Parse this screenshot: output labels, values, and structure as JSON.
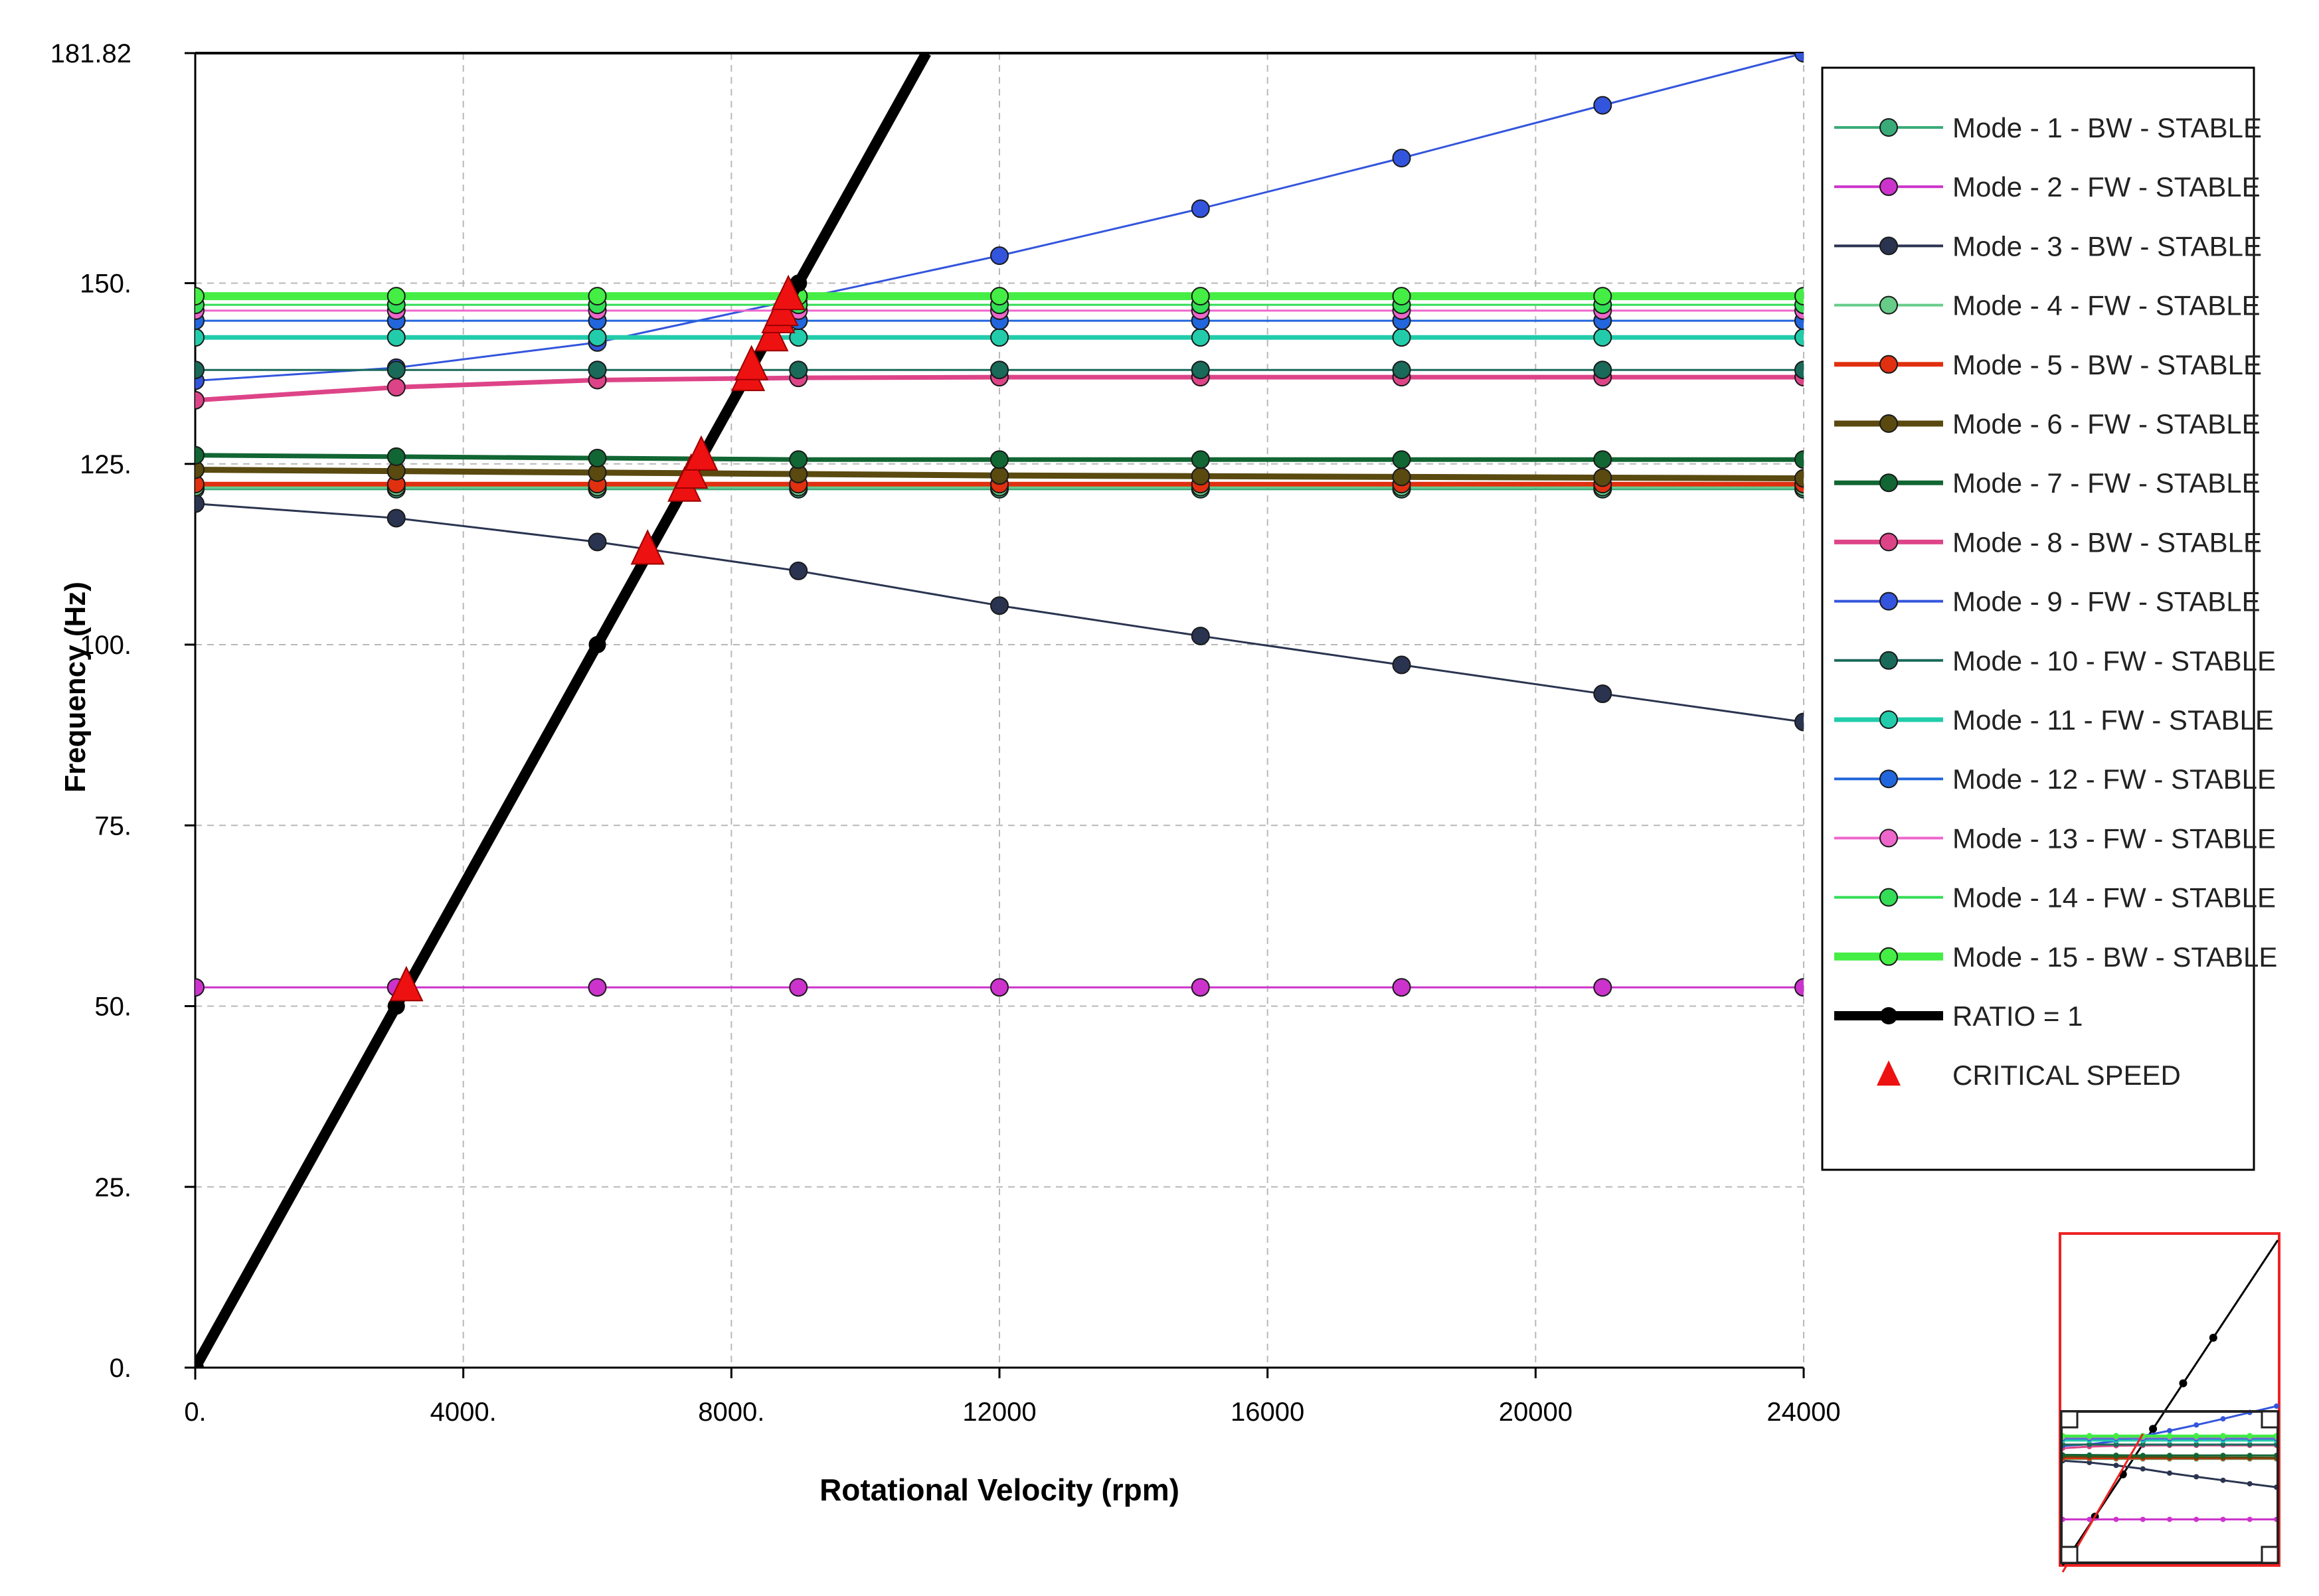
{
  "chart_data": {
    "type": "line",
    "xlabel": "Rotational Velocity (rpm)",
    "ylabel": "Frequency (Hz)",
    "xlim": [
      0,
      24000
    ],
    "ylim": [
      0,
      181.82
    ],
    "x_ticks": [
      0,
      4000,
      8000,
      12000,
      16000,
      20000,
      24000
    ],
    "x_tick_labels": [
      "0.",
      "4000.",
      "8000.",
      "12000",
      "16000",
      "20000",
      "24000"
    ],
    "y_ticks": [
      0,
      25,
      50,
      75,
      100,
      125,
      150,
      181.82
    ],
    "y_tick_labels": [
      "0.",
      "25.",
      "50.",
      "75.",
      "100.",
      "125.",
      "150.",
      "181.82"
    ],
    "grid": true,
    "legend_position": "right",
    "x": [
      0,
      3000,
      6000,
      9000,
      12000,
      15000,
      18000,
      21000,
      24000
    ],
    "series": [
      {
        "name": "Mode - 1  - BW  - STABLE",
        "color": "#3aaa78",
        "values": [
          121.5,
          121.5,
          121.5,
          121.5,
          121.5,
          121.5,
          121.5,
          121.5,
          121.5
        ]
      },
      {
        "name": "Mode - 2  - FW  - STABLE",
        "color": "#cc33cc",
        "values": [
          52.6,
          52.6,
          52.6,
          52.6,
          52.6,
          52.6,
          52.6,
          52.6,
          52.6
        ]
      },
      {
        "name": "Mode - 3  - BW  - STABLE",
        "color": "#2a3450",
        "values": [
          119.5,
          117.5,
          114.2,
          110.2,
          105.4,
          101.2,
          97.2,
          93.2,
          89.3
        ]
      },
      {
        "name": "Mode - 4  - FW  - STABLE",
        "color": "#66cc88",
        "values": [
          121.8,
          121.8,
          121.8,
          121.8,
          121.8,
          121.8,
          121.8,
          121.8,
          121.8
        ]
      },
      {
        "name": "Mode - 5  - BW  - STABLE",
        "color": "#e03010",
        "values": [
          122.2,
          122.2,
          122.2,
          122.2,
          122.2,
          122.2,
          122.2,
          122.2,
          122.2
        ]
      },
      {
        "name": "Mode - 6  - FW  - STABLE",
        "color": "#5a4a10",
        "values": [
          124.2,
          124.0,
          123.8,
          123.6,
          123.4,
          123.3,
          123.2,
          123.1,
          123.0
        ]
      },
      {
        "name": "Mode - 7  - FW  - STABLE",
        "color": "#116633",
        "values": [
          126.2,
          126.0,
          125.8,
          125.6,
          125.6,
          125.6,
          125.6,
          125.6,
          125.6
        ]
      },
      {
        "name": "Mode - 8  - BW  - STABLE",
        "color": "#dd4488",
        "values": [
          133.8,
          135.6,
          136.6,
          136.9,
          137.0,
          137.0,
          137.0,
          137.0,
          137.0
        ]
      },
      {
        "name": "Mode - 9  - FW  - STABLE",
        "color": "#3355dd",
        "values": [
          136.5,
          138.3,
          141.8,
          147.8,
          153.8,
          160.3,
          167.3,
          174.6,
          181.8
        ]
      },
      {
        "name": "Mode - 10  - FW  - STABLE",
        "color": "#1a6a5a",
        "values": [
          138.0,
          138.0,
          138.0,
          138.0,
          138.0,
          138.0,
          138.0,
          138.0,
          138.0
        ]
      },
      {
        "name": "Mode - 11  - FW  - STABLE",
        "color": "#22ccaa",
        "values": [
          142.5,
          142.5,
          142.5,
          142.5,
          142.5,
          142.5,
          142.5,
          142.5,
          142.5
        ]
      },
      {
        "name": "Mode - 12  - FW  - STABLE",
        "color": "#2266dd",
        "values": [
          144.8,
          144.8,
          144.8,
          144.8,
          144.8,
          144.8,
          144.8,
          144.8,
          144.8
        ]
      },
      {
        "name": "Mode - 13  - FW  - STABLE",
        "color": "#ee66cc",
        "values": [
          146.2,
          146.2,
          146.2,
          146.2,
          146.2,
          146.2,
          146.2,
          146.2,
          146.2
        ]
      },
      {
        "name": "Mode - 14  - FW  - STABLE",
        "color": "#33dd55",
        "values": [
          147.0,
          147.0,
          147.0,
          147.0,
          147.0,
          147.0,
          147.0,
          147.0,
          147.0
        ]
      },
      {
        "name": "Mode - 15  - BW  - STABLE",
        "color": "#44ee44",
        "values": [
          148.2,
          148.2,
          148.2,
          148.2,
          148.2,
          148.2,
          148.2,
          148.2,
          148.2
        ]
      }
    ],
    "ratio_line": {
      "name": "RATIO = 1",
      "color": "#000000",
      "x": [
        0,
        3000,
        6000,
        9000,
        10909
      ],
      "values": [
        0,
        50,
        100,
        150,
        181.82
      ]
    },
    "critical_speeds": {
      "name": "CRITICAL SPEED",
      "color": "#ee1111",
      "x": [
        3150,
        6750,
        7300,
        7400,
        7550,
        8250,
        8300,
        8600,
        8700,
        8750,
        8850
      ],
      "values": [
        52.6,
        113.0,
        121.7,
        123.5,
        126.0,
        137.0,
        138.5,
        142.5,
        145.0,
        146.0,
        148.2
      ]
    }
  }
}
